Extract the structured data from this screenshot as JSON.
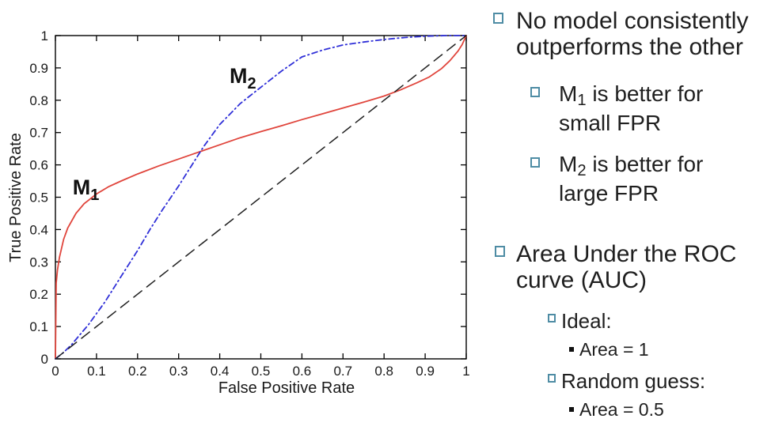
{
  "slide": {
    "text_color": "#1f1f1f",
    "bullet_color": "#4e8ca4",
    "bullets": {
      "b1_line1": "No model consistently",
      "b1_line2": "outperforms the other",
      "m1": {
        "base": "M",
        "sub": "1",
        "rest": " is better for",
        "line2": "small FPR"
      },
      "m2": {
        "base": "M",
        "sub": "2",
        "rest": " is better for",
        "line2": "large FPR"
      },
      "auc_line1": "Area Under the ROC",
      "auc_line2": "curve (AUC)",
      "ideal_label": "Ideal:",
      "ideal_area": "Area = 1",
      "random_label": "Random guess:",
      "random_area": "Area = 0.5"
    }
  },
  "chart_data": {
    "type": "line",
    "title": "",
    "xlabel": "False Positive Rate",
    "ylabel": "True Positive Rate",
    "xlim": [
      0,
      1
    ],
    "ylim": [
      0,
      1
    ],
    "grid": false,
    "legend": "none",
    "axis_color": "#000000",
    "tick_labels": [
      "0",
      "0.1",
      "0.2",
      "0.3",
      "0.4",
      "0.5",
      "0.6",
      "0.7",
      "0.8",
      "0.9",
      "1"
    ],
    "tick_values": [
      0,
      0.1,
      0.2,
      0.3,
      0.4,
      0.5,
      0.6,
      0.7,
      0.8,
      0.9,
      1
    ],
    "series": [
      {
        "name": "M1",
        "color": "#e0453c",
        "dash": "",
        "width": 1.8,
        "points": [
          [
            0,
            0
          ],
          [
            0.002,
            0.235
          ],
          [
            0.005,
            0.275
          ],
          [
            0.01,
            0.315
          ],
          [
            0.02,
            0.37
          ],
          [
            0.03,
            0.405
          ],
          [
            0.05,
            0.45
          ],
          [
            0.07,
            0.48
          ],
          [
            0.1,
            0.51
          ],
          [
            0.13,
            0.533
          ],
          [
            0.16,
            0.55
          ],
          [
            0.2,
            0.572
          ],
          [
            0.25,
            0.596
          ],
          [
            0.3,
            0.618
          ],
          [
            0.35,
            0.64
          ],
          [
            0.4,
            0.662
          ],
          [
            0.45,
            0.684
          ],
          [
            0.5,
            0.703
          ],
          [
            0.55,
            0.721
          ],
          [
            0.6,
            0.74
          ],
          [
            0.65,
            0.758
          ],
          [
            0.7,
            0.776
          ],
          [
            0.75,
            0.794
          ],
          [
            0.8,
            0.813
          ],
          [
            0.84,
            0.832
          ],
          [
            0.88,
            0.854
          ],
          [
            0.91,
            0.872
          ],
          [
            0.94,
            0.898
          ],
          [
            0.96,
            0.922
          ],
          [
            0.98,
            0.952
          ],
          [
            0.99,
            0.972
          ],
          [
            1,
            1
          ]
        ]
      },
      {
        "name": "M2",
        "color": "#3030d8",
        "dash": "7 4 1.5 4",
        "width": 1.8,
        "points": [
          [
            0,
            0
          ],
          [
            0.02,
            0.02
          ],
          [
            0.04,
            0.045
          ],
          [
            0.06,
            0.075
          ],
          [
            0.08,
            0.105
          ],
          [
            0.1,
            0.14
          ],
          [
            0.12,
            0.175
          ],
          [
            0.15,
            0.235
          ],
          [
            0.18,
            0.295
          ],
          [
            0.2,
            0.335
          ],
          [
            0.23,
            0.4
          ],
          [
            0.26,
            0.46
          ],
          [
            0.3,
            0.535
          ],
          [
            0.33,
            0.595
          ],
          [
            0.36,
            0.655
          ],
          [
            0.4,
            0.725
          ],
          [
            0.45,
            0.79
          ],
          [
            0.5,
            0.84
          ],
          [
            0.55,
            0.89
          ],
          [
            0.6,
            0.934
          ],
          [
            0.65,
            0.955
          ],
          [
            0.7,
            0.971
          ],
          [
            0.75,
            0.98
          ],
          [
            0.8,
            0.988
          ],
          [
            0.85,
            0.994
          ],
          [
            0.9,
            0.998
          ],
          [
            0.95,
            1
          ],
          [
            1,
            1
          ]
        ]
      },
      {
        "name": "random-guess-diagonal",
        "color": "#202020",
        "dash": "13 8",
        "width": 1.5,
        "points": [
          [
            0,
            0
          ],
          [
            1,
            1
          ]
        ]
      }
    ],
    "annotations": [
      {
        "base": "M",
        "sub": "1",
        "x": 0.042,
        "y": 0.509
      },
      {
        "base": "M",
        "sub": "2",
        "x": 0.424,
        "y": 0.853
      }
    ]
  }
}
